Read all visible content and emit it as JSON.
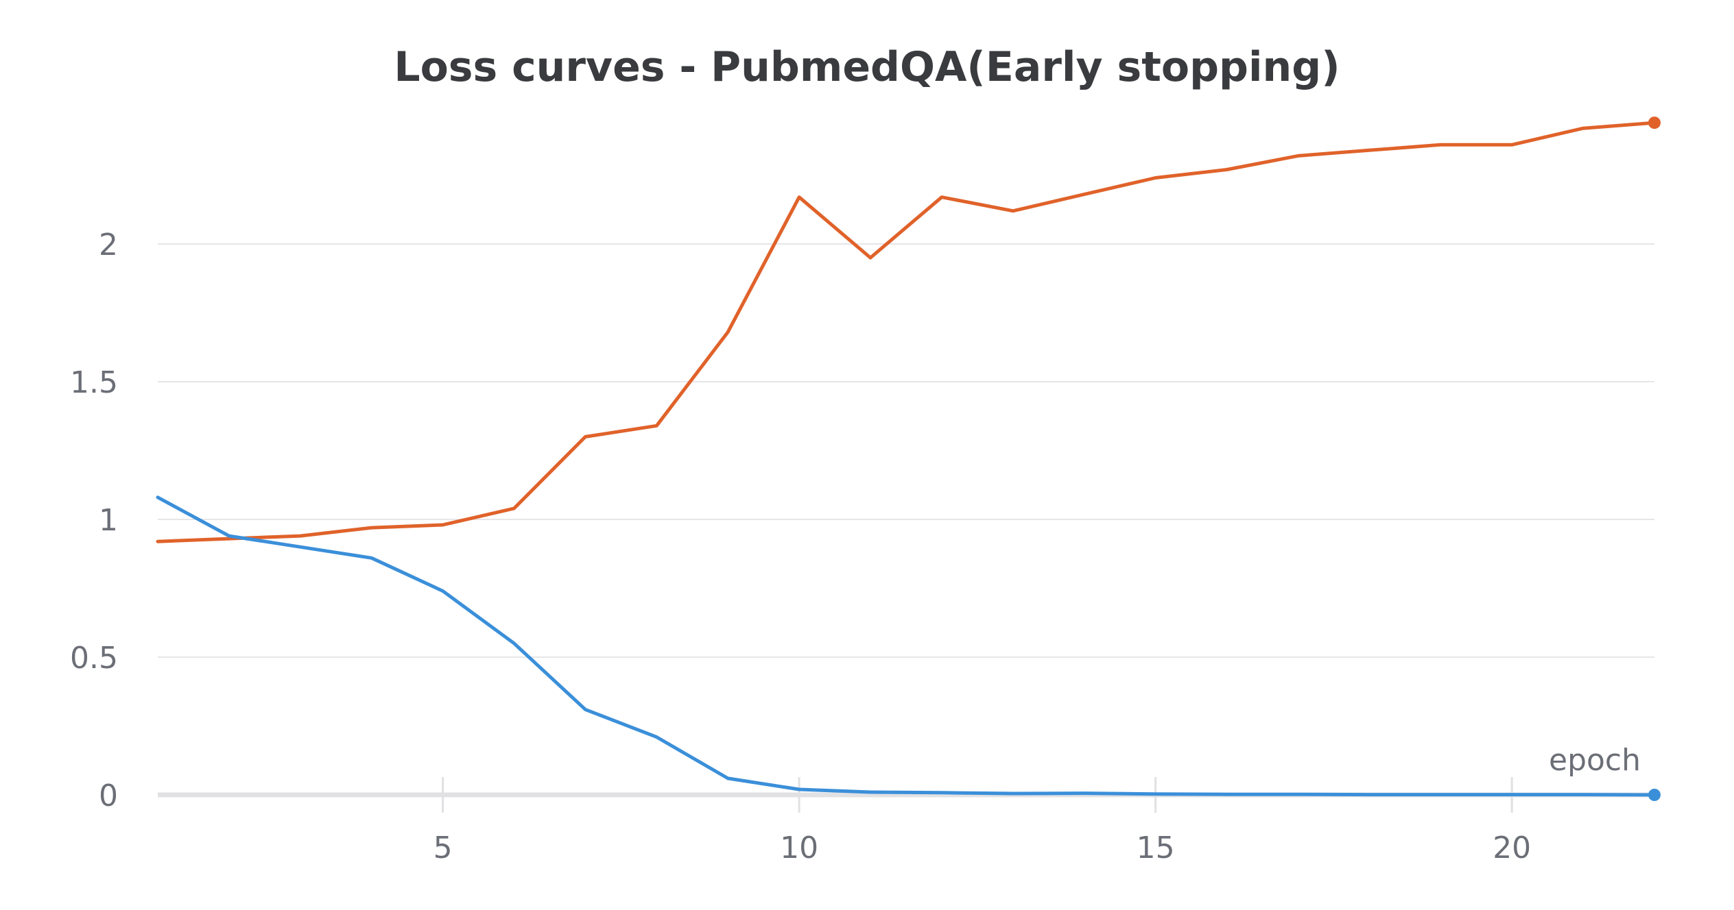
{
  "chart_data": {
    "type": "line",
    "title": "Loss curves - PubmedQA(Early stopping)",
    "xlabel": "epoch",
    "ylabel": "",
    "xlim": [
      1,
      22
    ],
    "ylim": [
      0,
      2.44
    ],
    "x_ticks": [
      5,
      10,
      15,
      20
    ],
    "y_ticks": [
      0,
      0.5,
      1,
      1.5,
      2
    ],
    "grid": true,
    "x": [
      1,
      2,
      3,
      4,
      5,
      6,
      7,
      8,
      9,
      10,
      11,
      12,
      13,
      14,
      15,
      16,
      17,
      18,
      19,
      20,
      21,
      22
    ],
    "series": [
      {
        "color": "#e0622a",
        "values": [
          0.92,
          0.93,
          0.94,
          0.97,
          0.98,
          1.04,
          1.3,
          1.34,
          1.68,
          2.17,
          1.95,
          2.17,
          2.12,
          2.18,
          2.24,
          2.27,
          2.32,
          2.34,
          2.36,
          2.36,
          2.42,
          2.44
        ]
      },
      {
        "color": "#3b8fd9",
        "values": [
          1.08,
          0.94,
          0.9,
          0.86,
          0.74,
          0.55,
          0.31,
          0.21,
          0.06,
          0.02,
          0.01,
          0.008,
          0.005,
          0.006,
          0.003,
          0.002,
          0.002,
          0.001,
          0.001,
          0.001,
          0.001,
          0.0
        ]
      }
    ]
  }
}
